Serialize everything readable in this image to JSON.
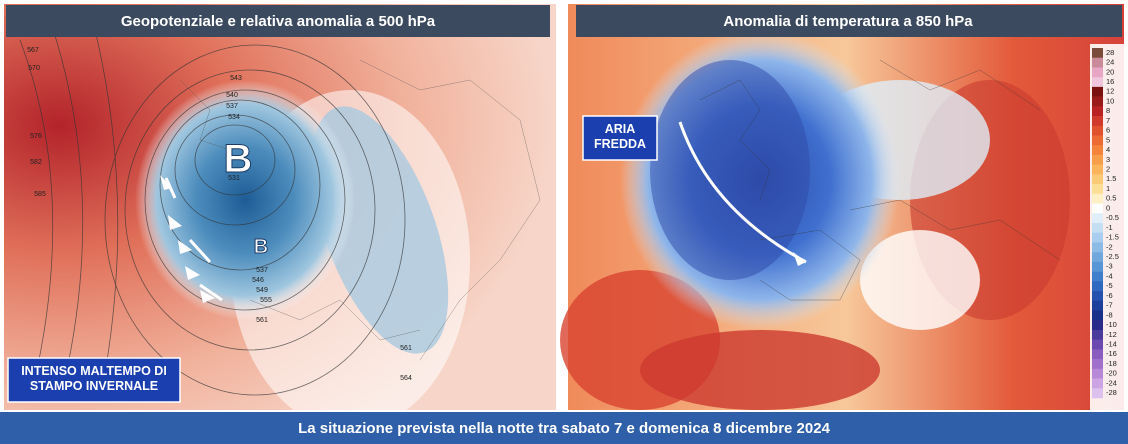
{
  "left_panel": {
    "title": "Geopotenziale e relativa anomalia a 500 hPa",
    "low_labels": [
      "B",
      "B"
    ],
    "contour_labels": [
      "567",
      "570",
      "576",
      "582",
      "585",
      "543",
      "540",
      "537",
      "534",
      "531",
      "546",
      "549",
      "537",
      "555",
      "561",
      "561",
      "564"
    ],
    "callout": "INTENSO MALTEMPO DI\nSTAMPO INVERNALE"
  },
  "right_panel": {
    "title": "Anomalia di temperatura a 850 hPa",
    "callout": "ARIA\nFREDDA",
    "colorbar_ticks": [
      28,
      24,
      20,
      16,
      12,
      10,
      8,
      7,
      6,
      5,
      4,
      3,
      2,
      1.5,
      1,
      0.5,
      0,
      -0.5,
      -1,
      -1.5,
      -2,
      -2.5,
      -3,
      -4,
      -5,
      -6,
      -7,
      -8,
      -10,
      -12,
      -14,
      -16,
      -18,
      -20,
      -24,
      -28
    ]
  },
  "footer": "La situazione prevista nella notte tra sabato 7 e domenica 8 dicembre 2024"
}
